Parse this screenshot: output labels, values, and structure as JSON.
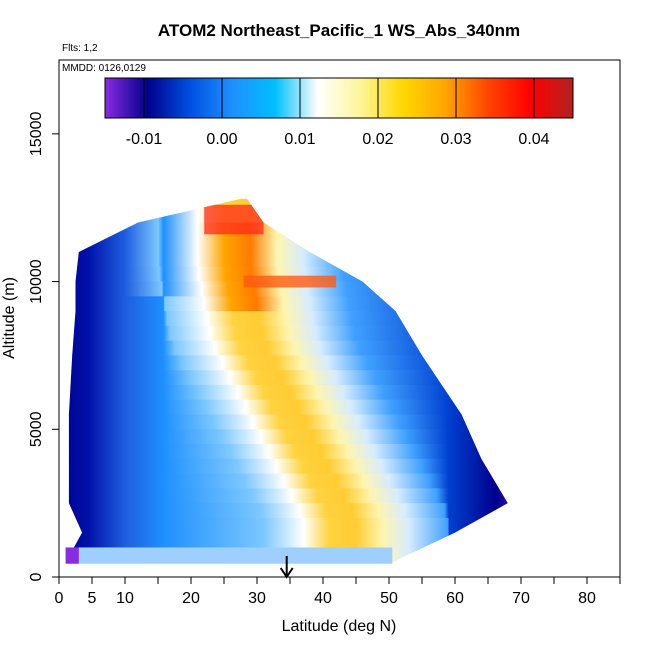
{
  "chart_data": {
    "type": "heatmap",
    "title": "ATOM2 Northeast_Pacific_1 WS_Abs_340nm",
    "subtitle_lines": [
      "Flts: 1,2",
      "MMDD: 0126,0129"
    ],
    "xlabel": "Latitude (deg N)",
    "ylabel": "Altitude (m)",
    "xlim": [
      0,
      85
    ],
    "ylim": [
      0,
      17500
    ],
    "x_ticks": [
      0,
      5,
      10,
      20,
      30,
      40,
      50,
      60,
      70,
      80
    ],
    "y_ticks": [
      0,
      5000,
      10000,
      15000
    ],
    "colorbar": {
      "range": [
        -0.015,
        0.045
      ],
      "ticks": [
        -0.01,
        0.0,
        0.01,
        0.02,
        0.03,
        0.04
      ],
      "tick_labels": [
        "-0.01",
        "0.00",
        "0.01",
        "0.02",
        "0.03",
        "0.04"
      ],
      "colors": [
        "#8a2be2",
        "#00008b",
        "#0050e0",
        "#1e90ff",
        "#00bfff",
        "#ffffff",
        "#fff59a",
        "#ffd700",
        "#ffa500",
        "#ff4500",
        "#ff0000",
        "#b22222"
      ]
    },
    "profile_envelope": [
      {
        "alt": 500,
        "lat_min": 1,
        "lat_max": 50.5
      },
      {
        "alt": 1500,
        "lat_min": 3.5,
        "lat_max": 60
      },
      {
        "alt": 2500,
        "lat_min": 1.5,
        "lat_max": 68
      },
      {
        "alt": 4000,
        "lat_min": 1.5,
        "lat_max": 64
      },
      {
        "alt": 5500,
        "lat_min": 1.5,
        "lat_max": 61
      },
      {
        "alt": 7500,
        "lat_min": 2,
        "lat_max": 55
      },
      {
        "alt": 9000,
        "lat_min": 2.5,
        "lat_max": 51
      },
      {
        "alt": 10000,
        "lat_min": 2.5,
        "lat_max": 46
      },
      {
        "alt": 11000,
        "lat_min": 3,
        "lat_max": 38
      },
      {
        "alt": 12000,
        "lat_min": 12,
        "lat_max": 31
      },
      {
        "alt": 12800,
        "lat_min": 27.5,
        "lat_max": 28.5
      }
    ],
    "plume_band": [
      {
        "alt": 2000,
        "lat": 43
      },
      {
        "alt": 5000,
        "lat": 36
      },
      {
        "alt": 8000,
        "lat": 29
      },
      {
        "alt": 10500,
        "lat": 27
      },
      {
        "alt": 12000,
        "lat": 27
      }
    ],
    "arrow_marker": {
      "lat": 34.5
    },
    "legend_location": "top-inside"
  }
}
